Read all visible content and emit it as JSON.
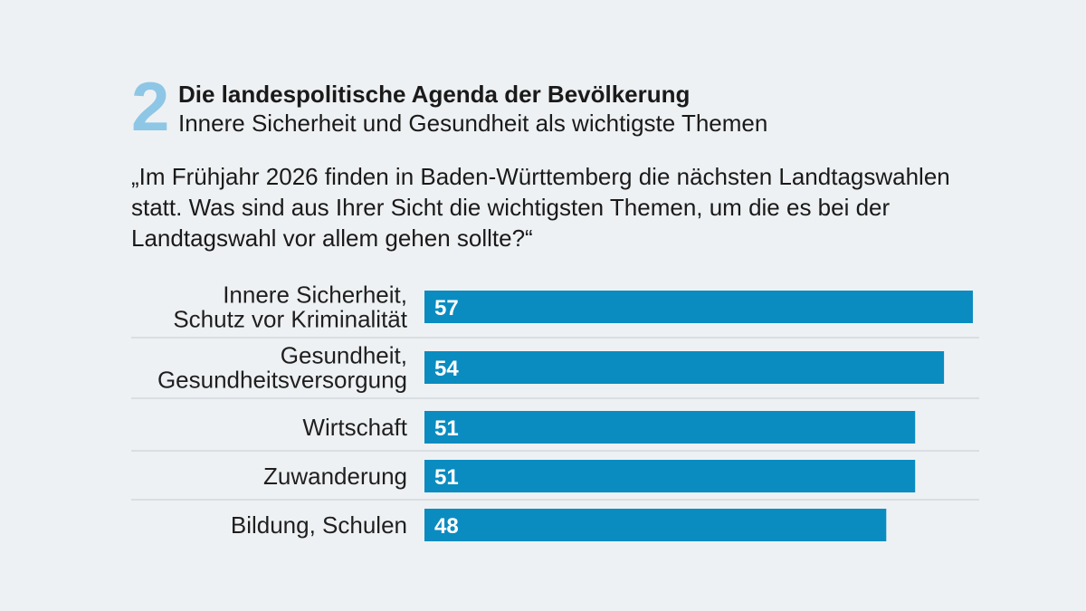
{
  "header": {
    "number": "2",
    "title": "Die landespolitische Agenda der Bevölkerung",
    "subtitle": "Innere Sicherheit und Gesundheit als wichtigste Themen"
  },
  "question": "„Im Frühjahr 2026 finden in Baden-Württemberg die nächsten Landtagswahlen statt. Was sind aus Ihrer Sicht die wichtigsten Themen, um die es bei der Landtagswahl vor allem gehen sollte?“",
  "colors": {
    "bar": "#0a8cc0",
    "accent": "#8ec6e6",
    "background": "#eef1f3",
    "divider": "#c4cbd0"
  },
  "chart_data": {
    "type": "bar",
    "orientation": "horizontal",
    "title": "Die landespolitische Agenda der Bevölkerung",
    "subtitle": "Innere Sicherheit und Gesundheit als wichtigste Themen",
    "categories": [
      [
        "Innere Sicherheit,",
        "Schutz vor Kriminalität"
      ],
      [
        "Gesundheit,",
        "Gesundheitsversorgung"
      ],
      [
        "Wirtschaft"
      ],
      [
        "Zuwanderung"
      ],
      [
        "Bildung, Schulen"
      ]
    ],
    "values": [
      57,
      54,
      51,
      51,
      48
    ],
    "xlim": [
      0,
      57
    ],
    "xlabel": "",
    "ylabel": "",
    "grid": false
  }
}
